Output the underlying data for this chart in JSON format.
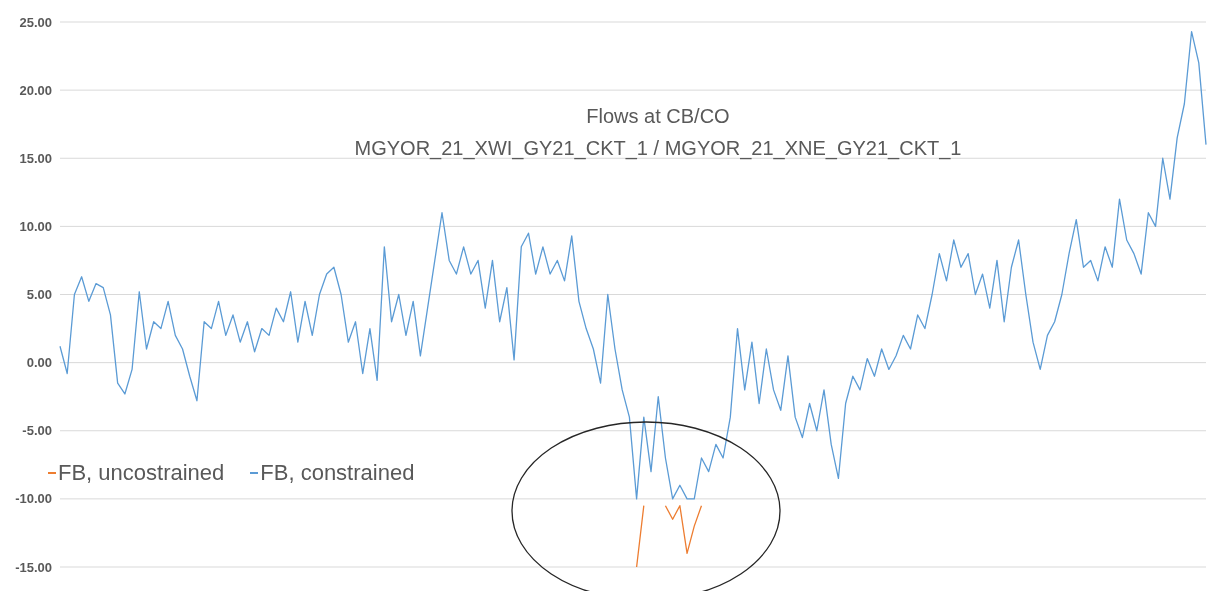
{
  "chart_data": {
    "type": "line",
    "title": "Flows at CB/CO",
    "subtitle": "MGYOR_21_XWI_GY21_CKT_1 / MGYOR_21_XNE_GY21_CKT_1",
    "categories": [
      null,
      null,
      null,
      null,
      null,
      null,
      null,
      null,
      null,
      null,
      null,
      null,
      null,
      null,
      null,
      null,
      null,
      null,
      null,
      null,
      null,
      null,
      null,
      null,
      null,
      null,
      null,
      null,
      null,
      null,
      null,
      null,
      null,
      null,
      null,
      null,
      null,
      null,
      null,
      null,
      null,
      null,
      null,
      null,
      null,
      null,
      null,
      null,
      null,
      null,
      null,
      null,
      null,
      null,
      null,
      null,
      null,
      null,
      null,
      null,
      null,
      null,
      null,
      null,
      null,
      null,
      null,
      null,
      null,
      null,
      null,
      null,
      null,
      null,
      null,
      null,
      null,
      null,
      null,
      null,
      null,
      null,
      null,
      null,
      null,
      null,
      null,
      null,
      null,
      null,
      null,
      null,
      null,
      null,
      null,
      null,
      null,
      null,
      null,
      null,
      null,
      null,
      null,
      null,
      null,
      null,
      null,
      null,
      null,
      null,
      null,
      null,
      null,
      null,
      null,
      null,
      null,
      null,
      null,
      null,
      null,
      null,
      null,
      null,
      null,
      null,
      null,
      null,
      null,
      null,
      null,
      null,
      null,
      null,
      null,
      null,
      null,
      null,
      null,
      null,
      null,
      null,
      null,
      null,
      null,
      null,
      null,
      null,
      null,
      null,
      null,
      null,
      null,
      null,
      null,
      null,
      null,
      null,
      null,
      null
    ],
    "series": [
      {
        "name": "FB, uncostrained",
        "color": "#ed7d31",
        "values": [
          null,
          null,
          null,
          null,
          null,
          null,
          null,
          null,
          null,
          null,
          null,
          null,
          null,
          null,
          null,
          null,
          null,
          null,
          null,
          null,
          null,
          null,
          null,
          null,
          null,
          null,
          null,
          null,
          null,
          null,
          null,
          null,
          null,
          null,
          null,
          null,
          null,
          null,
          null,
          null,
          null,
          null,
          null,
          null,
          null,
          null,
          null,
          null,
          null,
          null,
          null,
          null,
          null,
          null,
          null,
          null,
          null,
          null,
          null,
          null,
          null,
          null,
          null,
          null,
          null,
          null,
          null,
          null,
          null,
          null,
          null,
          null,
          null,
          null,
          null,
          null,
          null,
          null,
          null,
          null,
          -15,
          -10.5,
          null,
          null,
          -10.5,
          -11.5,
          -10.5,
          -14,
          -12,
          -10.5,
          null,
          null,
          null,
          null,
          null,
          null,
          null,
          null,
          null,
          null,
          null,
          null,
          null,
          null,
          null,
          null,
          null,
          null,
          null,
          null,
          null,
          null,
          null,
          null,
          null,
          null,
          null,
          null,
          null,
          null,
          null,
          null,
          null,
          null,
          null,
          null,
          null,
          null,
          null,
          null,
          null,
          null,
          null,
          null,
          null,
          null,
          null,
          null,
          null,
          null,
          null,
          null,
          null,
          null,
          null,
          null,
          null,
          null,
          null,
          null,
          null,
          null,
          null,
          null,
          null,
          null,
          null,
          null,
          null,
          null
        ]
      },
      {
        "name": "FB, constrained",
        "color": "#5b9bd5",
        "values": [
          1.2,
          -0.8,
          5,
          6.3,
          4.5,
          5.8,
          5.5,
          3.5,
          -1.5,
          -2.3,
          -0.5,
          5.2,
          1,
          3,
          2.5,
          4.5,
          2,
          1,
          -1,
          -2.8,
          3,
          2.5,
          4.5,
          2,
          3.5,
          1.5,
          3,
          0.8,
          2.5,
          2,
          4,
          3,
          5.2,
          1.5,
          4.5,
          2,
          5,
          6.5,
          7,
          5,
          1.5,
          3,
          -0.8,
          2.5,
          -1.3,
          8.5,
          3,
          5,
          2,
          4.5,
          0.5,
          4,
          7.5,
          11,
          7.5,
          6.5,
          8.5,
          6.5,
          7.5,
          4,
          7.5,
          3,
          5.5,
          0.2,
          8.5,
          9.5,
          6.5,
          8.5,
          6.5,
          7.5,
          6,
          9.3,
          4.5,
          2.5,
          1,
          -1.5,
          5,
          1,
          -2,
          -4,
          -10,
          -4,
          -8,
          -2.5,
          -7,
          -10,
          -9,
          -10,
          -10,
          -7,
          -8,
          -6,
          -7,
          -4,
          2.5,
          -2,
          1.5,
          -3,
          1,
          -2,
          -3.5,
          0.5,
          -4,
          -5.5,
          -3,
          -5,
          -2,
          -6,
          -8.5,
          -3,
          -1,
          -2,
          0.3,
          -1,
          1,
          -0.5,
          0.5,
          2,
          1,
          3.5,
          2.5,
          5,
          8,
          6,
          9,
          7,
          8,
          5,
          6.5,
          4,
          7.5,
          3,
          7,
          9,
          5,
          1.5,
          -0.5,
          2,
          3,
          5,
          8,
          10.5,
          7,
          7.5,
          6,
          8.5,
          7,
          12,
          9,
          8,
          6.5,
          11,
          10,
          15,
          12,
          16.5,
          19,
          24.3,
          22,
          16
        ]
      }
    ],
    "ylim": [
      -15,
      25
    ],
    "yticks": [
      {
        "value": -15,
        "label": "-15.00"
      },
      {
        "value": -10,
        "label": "-10.00"
      },
      {
        "value": -5,
        "label": "-5.00"
      },
      {
        "value": 0,
        "label": "0.00"
      },
      {
        "value": 5,
        "label": "5.00"
      },
      {
        "value": 10,
        "label": "10.00"
      },
      {
        "value": 15,
        "label": "15.00"
      },
      {
        "value": 20,
        "label": "20.00"
      },
      {
        "value": 25,
        "label": "25.00"
      }
    ],
    "grid": "y",
    "legend": "left",
    "tick_labels": "y",
    "marker": "none",
    "line_style": "solid"
  }
}
